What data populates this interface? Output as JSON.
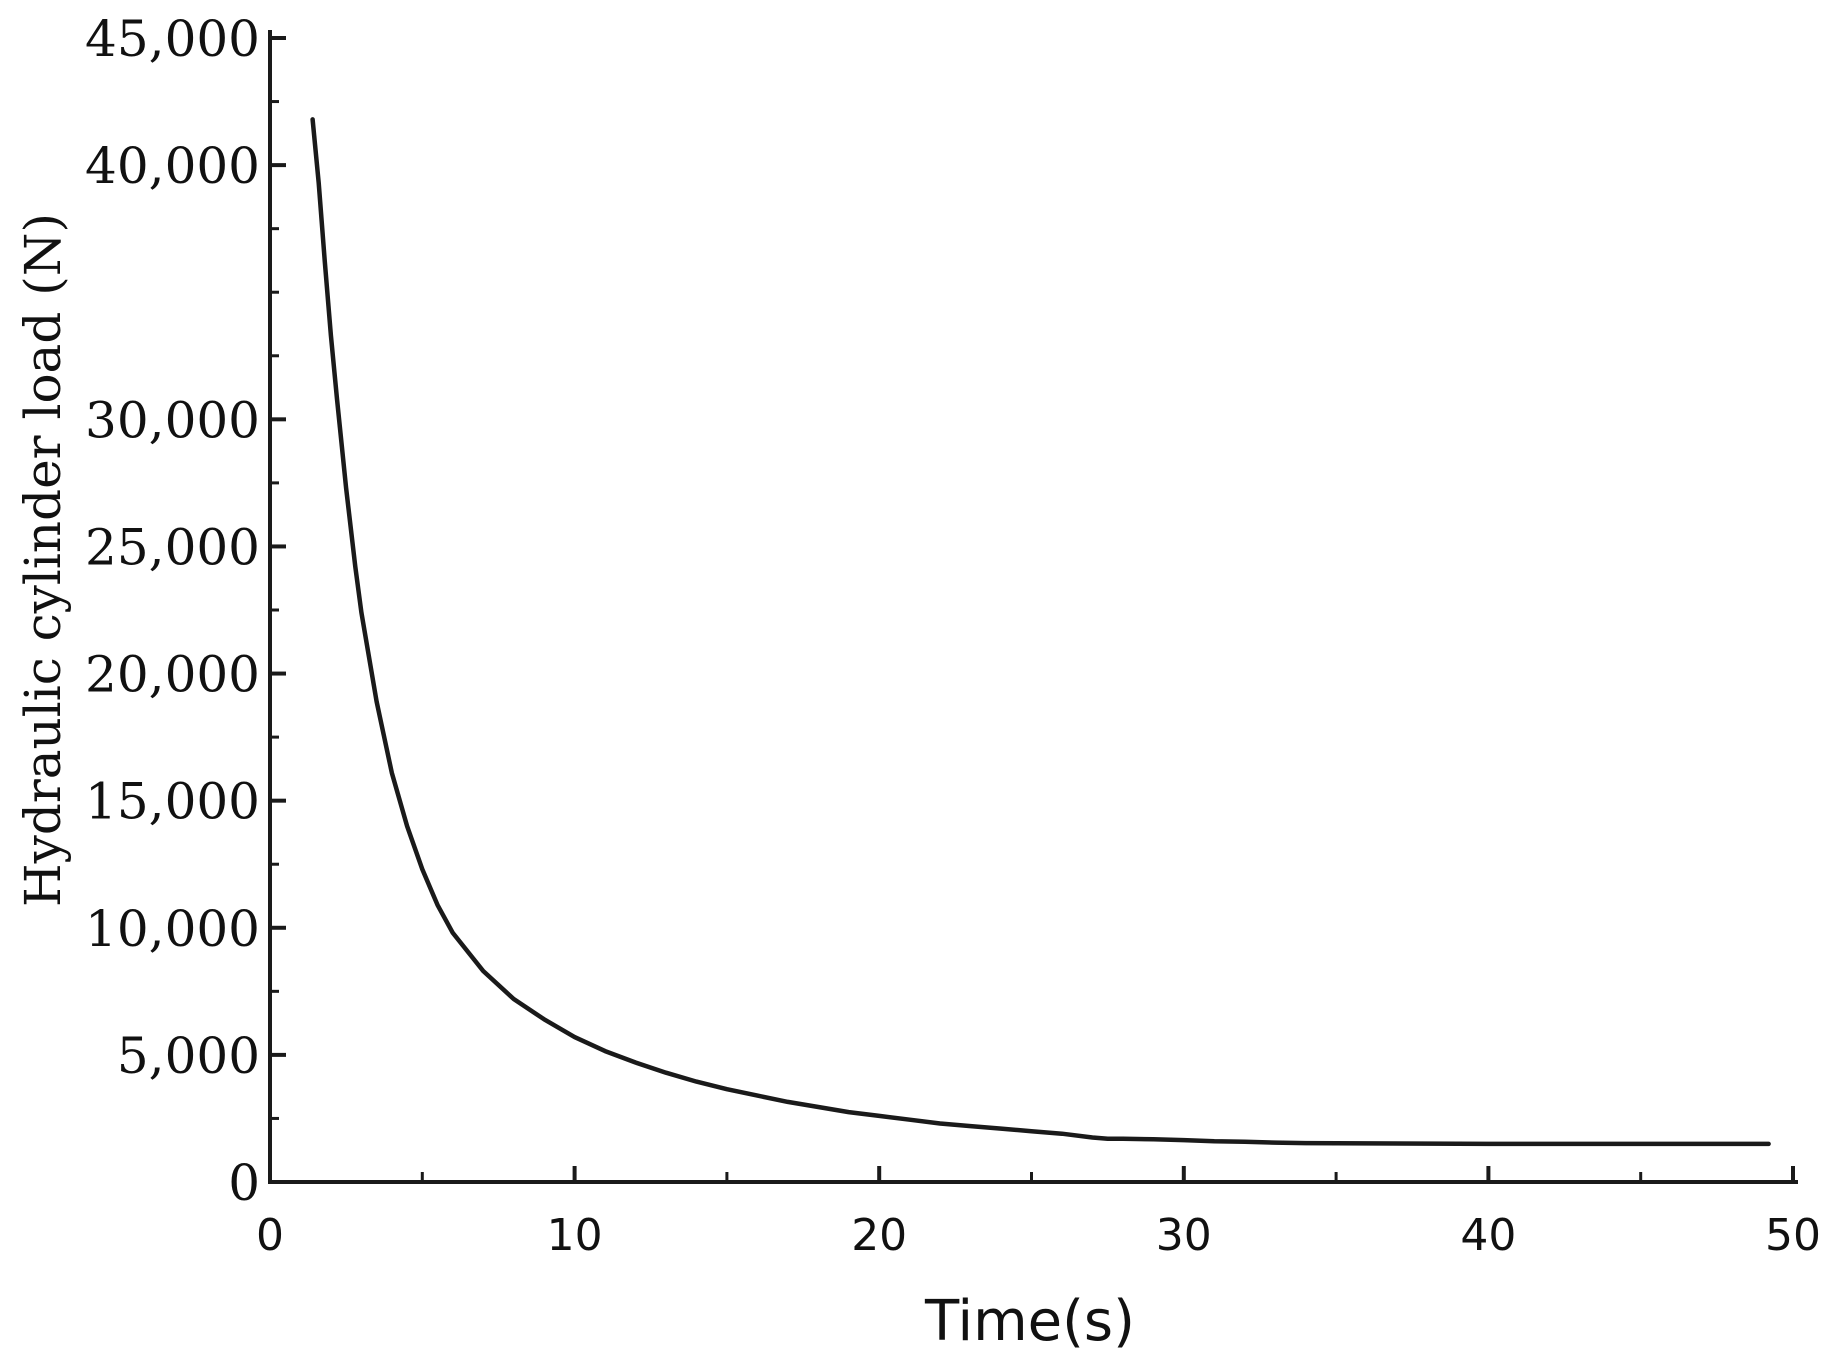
{
  "chart_data": {
    "type": "line",
    "xlabel": "Time(s)",
    "ylabel": "Hydraulic cylinder load (N)",
    "xlim": [
      0,
      50
    ],
    "ylim": [
      0,
      45000
    ],
    "grid": false,
    "xticks": [
      {
        "value": 0,
        "label": "0"
      },
      {
        "value": 10,
        "label": "10"
      },
      {
        "value": 20,
        "label": "20"
      },
      {
        "value": 30,
        "label": "30"
      },
      {
        "value": 40,
        "label": "40"
      },
      {
        "value": 50,
        "label": "50"
      }
    ],
    "yticks": [
      {
        "value": 0,
        "label": "0"
      },
      {
        "value": 5000,
        "label": "5,000"
      },
      {
        "value": 10000,
        "label": "10,000"
      },
      {
        "value": 15000,
        "label": "15,000"
      },
      {
        "value": 20000,
        "label": "20,000"
      },
      {
        "value": 25000,
        "label": "25,000"
      },
      {
        "value": 30000,
        "label": "30,000"
      },
      {
        "value": 40000,
        "label": "40,000"
      },
      {
        "value": 45000,
        "label": "45,000"
      }
    ],
    "x_minor_ticks": [
      5,
      15,
      25,
      35,
      45
    ],
    "y_minor_ticks": [
      2500,
      7500,
      12500,
      17500,
      22500,
      27500,
      32500,
      35000,
      37500,
      42500
    ],
    "series": [
      {
        "color": "#1a1a1a",
        "x": [
          1.4,
          1.6,
          1.8,
          2.0,
          2.2,
          2.5,
          2.8,
          3.0,
          3.5,
          4.0,
          4.5,
          5.0,
          5.5,
          6.0,
          7.0,
          8.0,
          9.0,
          10.0,
          11.0,
          12.0,
          13.0,
          14.0,
          15.0,
          16.0,
          17.0,
          18.0,
          19.0,
          20.0,
          21.0,
          22.0,
          23.0,
          24.0,
          25.0,
          26.0,
          27.0,
          27.5,
          28.0,
          29.0,
          30.0,
          31.0,
          32.0,
          33.0,
          34.0,
          36.0,
          38.0,
          40.0,
          42.0,
          44.0,
          46.0,
          48.0,
          49.2
        ],
        "y": [
          41800,
          39300,
          36200,
          33300,
          30800,
          27300,
          24200,
          22400,
          18900,
          16100,
          14000,
          12300,
          10900,
          9800,
          8300,
          7200,
          6400,
          5700,
          5150,
          4700,
          4300,
          3950,
          3650,
          3400,
          3150,
          2950,
          2750,
          2600,
          2450,
          2300,
          2200,
          2100,
          2000,
          1900,
          1750,
          1700,
          1700,
          1680,
          1650,
          1600,
          1580,
          1550,
          1530,
          1520,
          1510,
          1500,
          1500,
          1500,
          1500,
          1500,
          1500
        ]
      }
    ]
  }
}
